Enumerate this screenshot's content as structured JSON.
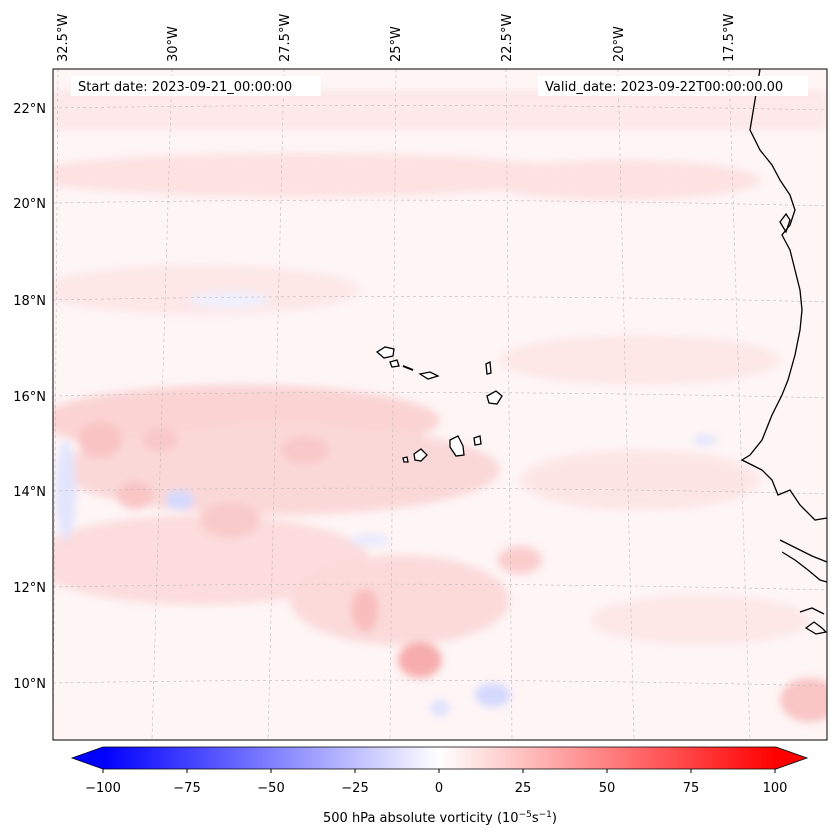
{
  "map": {
    "start_label": "Start date: 2023-09-21_00:00:00",
    "valid_label": "Valid_date: 2023-09-22T00:00:00.00",
    "lon_labels": [
      "32.5°W",
      "30°W",
      "27.5°W",
      "25°W",
      "22.5°W",
      "20°W",
      "17.5°W"
    ],
    "lat_labels": [
      "22°N",
      "20°N",
      "18°N",
      "16°N",
      "14°N",
      "12°N",
      "10°N"
    ],
    "field": "500 hPa absolute vorticity",
    "colors": {
      "positive": "#ff0000",
      "negative": "#0000ff",
      "coastline": "#000000",
      "grid": "#cccccc"
    }
  },
  "colorbar": {
    "label": "500 hPa absolute vorticity (10",
    "label_exp1": "−5",
    "label_mid": "s",
    "label_exp2": "−1",
    "label_end": ")",
    "ticks": [
      "−100",
      "−75",
      "−50",
      "−25",
      "0",
      "25",
      "50",
      "75",
      "100"
    ],
    "range": [
      -100,
      100
    ]
  }
}
